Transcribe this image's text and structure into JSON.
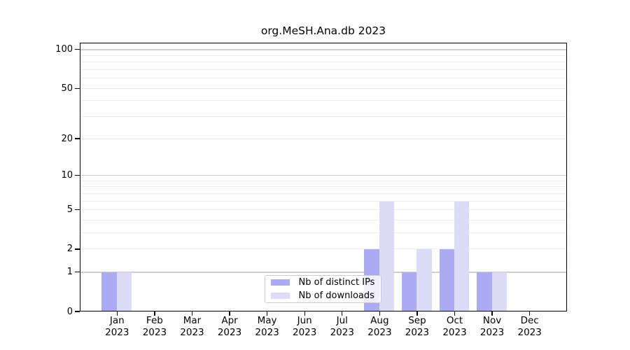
{
  "chart_data": {
    "type": "bar",
    "title": "org.MeSH.Ana.db 2023",
    "categories": [
      "Jan",
      "Feb",
      "Mar",
      "Apr",
      "May",
      "Jun",
      "Jul",
      "Aug",
      "Sep",
      "Oct",
      "Nov",
      "Dec"
    ],
    "x_tick_year": "2023",
    "series": [
      {
        "name": "Nb of distinct IPs",
        "color": "#aaabf3",
        "values": [
          1,
          0,
          0,
          0,
          0,
          0,
          0,
          2,
          1,
          2,
          1,
          0
        ]
      },
      {
        "name": "Nb of downloads",
        "color": "#dcdcf8",
        "values": [
          1,
          0,
          0,
          0,
          0,
          0,
          0,
          6,
          2,
          6,
          1,
          0
        ]
      }
    ],
    "scale": "log1p",
    "y_ticks": [
      0,
      1,
      2,
      5,
      10,
      20,
      50,
      100
    ],
    "grid_major": [
      1,
      10,
      100
    ],
    "grid_minor": [
      2,
      3,
      4,
      5,
      6,
      7,
      8,
      9,
      20,
      30,
      40,
      50,
      60,
      70,
      80,
      90
    ],
    "ylim": [
      0,
      112
    ],
    "grid": true,
    "legend_position": "inside-bottom-center",
    "colors": {
      "grid_major": "#cdcdcd",
      "grid_minor": "#ededed",
      "axis": "#000000",
      "background": "#ffffff"
    }
  }
}
